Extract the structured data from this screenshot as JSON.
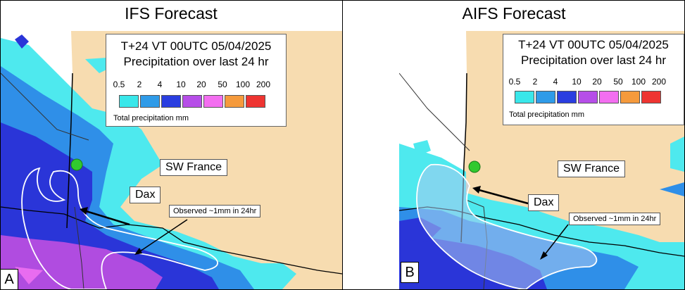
{
  "panels": [
    {
      "title": "IFS Forecast",
      "legend_title_line1": "T+24 VT 00UTC 05/04/2025",
      "legend_title_line2": "Precipitation over last 24 hr",
      "scale_labels": [
        "0.5",
        "2",
        "4",
        "10",
        "20",
        "50",
        "100",
        "200"
      ],
      "unit_label": "Total precipitation mm",
      "region_label": "SW France",
      "place_label": "Dax",
      "observed_label": "Observed ~1mm in 24hr",
      "panel_letter": "A"
    },
    {
      "title": "AIFS Forecast",
      "legend_title_line1": "T+24 VT 00UTC 05/04/2025",
      "legend_title_line2": "Precipitation over last 24 hr",
      "scale_labels": [
        "0.5",
        "2",
        "4",
        "10",
        "20",
        "50",
        "100",
        "200"
      ],
      "unit_label": "Total precipitation mm",
      "region_label": "SW France",
      "place_label": "Dax",
      "observed_label": "Observed ~1mm in 24hr",
      "panel_letter": "B"
    }
  ],
  "scale_colors": [
    "#39e7ea",
    "#2f9be8",
    "#2a3ee0",
    "#b64ee8",
    "#f36ef0",
    "#f59a3c",
    "#ee3431"
  ],
  "colors": {
    "land": "#f7dcb0",
    "sea": "#ffffff",
    "light_precip": "#4ee9ee",
    "moderate_precip": "#2f8fe8",
    "heavy_precip": "#2a35d8",
    "very_heavy_precip": "#b04ce0",
    "contour": "#ffffff",
    "marker": "#31c92e"
  }
}
